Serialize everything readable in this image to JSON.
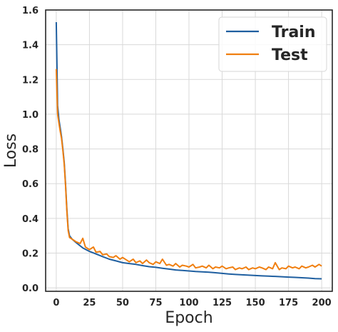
{
  "chart_data": {
    "type": "line",
    "title": "",
    "xlabel": "Epoch",
    "ylabel": "Loss",
    "xlim": [
      -8,
      208
    ],
    "ylim": [
      -0.02,
      1.6
    ],
    "xticks": [
      0,
      25,
      50,
      75,
      100,
      125,
      150,
      175,
      200
    ],
    "yticks": [
      0.0,
      0.2,
      0.4,
      0.6,
      0.8,
      1.0,
      1.2,
      1.4,
      1.6
    ],
    "xtick_labels": [
      "0",
      "25",
      "50",
      "75",
      "100",
      "125",
      "150",
      "175",
      "200"
    ],
    "ytick_labels": [
      "0.0",
      "0.2",
      "0.4",
      "0.6",
      "0.8",
      "1.0",
      "1.2",
      "1.4",
      "1.6"
    ],
    "grid": true,
    "legend_position": "top-right",
    "series": [
      {
        "name": "Train",
        "color": "#1f5fa0",
        "x": [
          0,
          1,
          2,
          3,
          4,
          5,
          6,
          7,
          8,
          9,
          10,
          12,
          15,
          20,
          25,
          30,
          35,
          40,
          45,
          50,
          55,
          60,
          65,
          70,
          75,
          80,
          85,
          90,
          95,
          100,
          105,
          110,
          115,
          120,
          125,
          130,
          135,
          140,
          145,
          150,
          155,
          160,
          165,
          170,
          175,
          180,
          185,
          190,
          195,
          200
        ],
        "y": [
          1.53,
          1.05,
          0.97,
          0.92,
          0.87,
          0.8,
          0.72,
          0.6,
          0.45,
          0.34,
          0.3,
          0.28,
          0.26,
          0.23,
          0.21,
          0.195,
          0.18,
          0.165,
          0.155,
          0.145,
          0.14,
          0.135,
          0.128,
          0.122,
          0.118,
          0.113,
          0.108,
          0.103,
          0.1,
          0.097,
          0.094,
          0.092,
          0.09,
          0.087,
          0.083,
          0.08,
          0.077,
          0.075,
          0.073,
          0.071,
          0.069,
          0.067,
          0.066,
          0.064,
          0.062,
          0.06,
          0.058,
          0.056,
          0.053,
          0.052
        ]
      },
      {
        "name": "Test",
        "color": "#f07f10",
        "x": [
          0,
          1,
          2,
          3,
          4,
          5,
          6,
          7,
          8,
          9,
          10,
          12,
          15,
          18,
          20,
          22,
          25,
          28,
          30,
          33,
          35,
          38,
          40,
          43,
          45,
          48,
          50,
          53,
          55,
          58,
          60,
          63,
          65,
          68,
          70,
          73,
          75,
          78,
          80,
          83,
          85,
          88,
          90,
          93,
          95,
          98,
          100,
          103,
          105,
          108,
          110,
          113,
          115,
          118,
          120,
          123,
          125,
          128,
          130,
          133,
          135,
          138,
          140,
          143,
          145,
          148,
          150,
          153,
          155,
          158,
          160,
          163,
          165,
          168,
          170,
          173,
          175,
          178,
          180,
          183,
          185,
          188,
          190,
          193,
          195,
          198,
          200
        ],
        "y": [
          1.26,
          1.0,
          0.95,
          0.9,
          0.86,
          0.79,
          0.71,
          0.59,
          0.44,
          0.33,
          0.29,
          0.28,
          0.265,
          0.255,
          0.285,
          0.235,
          0.22,
          0.235,
          0.205,
          0.21,
          0.19,
          0.195,
          0.18,
          0.175,
          0.185,
          0.165,
          0.175,
          0.16,
          0.15,
          0.165,
          0.145,
          0.155,
          0.14,
          0.16,
          0.145,
          0.135,
          0.15,
          0.14,
          0.165,
          0.13,
          0.135,
          0.125,
          0.14,
          0.12,
          0.13,
          0.125,
          0.12,
          0.135,
          0.115,
          0.12,
          0.125,
          0.115,
          0.13,
          0.11,
          0.12,
          0.115,
          0.125,
          0.11,
          0.115,
          0.12,
          0.105,
          0.115,
          0.11,
          0.12,
          0.105,
          0.115,
          0.11,
          0.12,
          0.115,
          0.105,
          0.12,
          0.11,
          0.145,
          0.105,
          0.115,
          0.11,
          0.125,
          0.115,
          0.12,
          0.11,
          0.125,
          0.115,
          0.12,
          0.13,
          0.12,
          0.135,
          0.125
        ]
      }
    ]
  }
}
